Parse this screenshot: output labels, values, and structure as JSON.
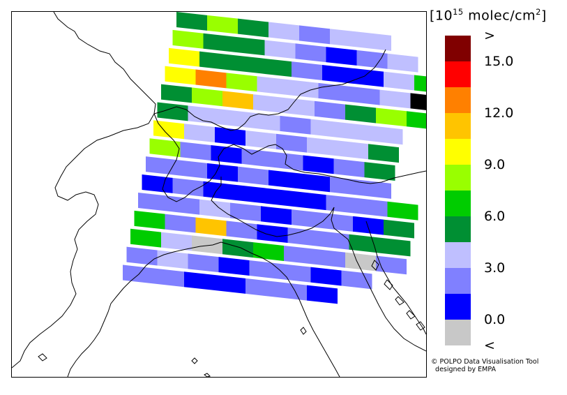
{
  "legend": {
    "title_bracket_open": "[",
    "title_unit_base": "10",
    "title_unit_exp": "15",
    "title_unit_rest": " molec/cm",
    "title_unit_sq": "2",
    "title_bracket_close": "]",
    "colors": [
      "#800000",
      "#ff0000",
      "#ff8000",
      "#ffc400",
      "#ffff00",
      "#99ff00",
      "#00cc00",
      "#008f33",
      "#bfbfff",
      "#8080ff",
      "#0000ff",
      "#c8c8c8"
    ],
    "labels": [
      {
        "text": ">",
        "level": 0
      },
      {
        "text": "15.0",
        "level": 1
      },
      {
        "text": "12.0",
        "level": 3
      },
      {
        "text": "9.0",
        "level": 5
      },
      {
        "text": "6.0",
        "level": 7
      },
      {
        "text": "3.0",
        "level": 9
      },
      {
        "text": "0.0",
        "level": 11
      },
      {
        "text": "<",
        "level": 12
      }
    ]
  },
  "credit": {
    "line1": "© POLPO Data Visualisation Tool",
    "line2": "  designed by EMPA"
  },
  "swath": {
    "rows": [
      [
        7,
        5,
        7,
        8,
        9,
        8,
        8
      ],
      [
        5,
        7,
        7,
        8,
        9,
        10,
        9,
        8
      ],
      [
        4,
        7,
        7,
        7,
        9,
        10,
        10,
        8,
        6
      ],
      [
        4,
        2,
        5,
        8,
        8,
        9,
        9,
        8,
        12,
        0
      ],
      [
        7,
        5,
        3,
        8,
        8,
        9,
        7,
        5,
        6,
        6
      ],
      [
        7,
        8,
        8,
        8,
        9,
        8,
        8,
        8
      ],
      [
        4,
        8,
        10,
        8,
        9,
        8,
        8,
        7
      ],
      [
        5,
        9,
        10,
        9,
        9,
        10,
        9,
        7
      ],
      [
        9,
        9,
        10,
        9,
        10,
        10,
        9,
        9
      ],
      [
        10,
        9,
        10,
        10,
        10,
        10,
        9,
        9,
        6
      ],
      [
        9,
        9,
        8,
        9,
        10,
        9,
        9,
        10,
        7
      ],
      [
        6,
        9,
        3,
        9,
        10,
        9,
        9,
        7,
        7
      ],
      [
        6,
        8,
        11,
        7,
        6,
        9,
        9,
        11,
        9
      ],
      [
        9,
        8,
        9,
        10,
        9,
        9,
        10,
        9
      ],
      [
        9,
        9,
        10,
        10,
        9,
        9,
        10
      ]
    ]
  }
}
